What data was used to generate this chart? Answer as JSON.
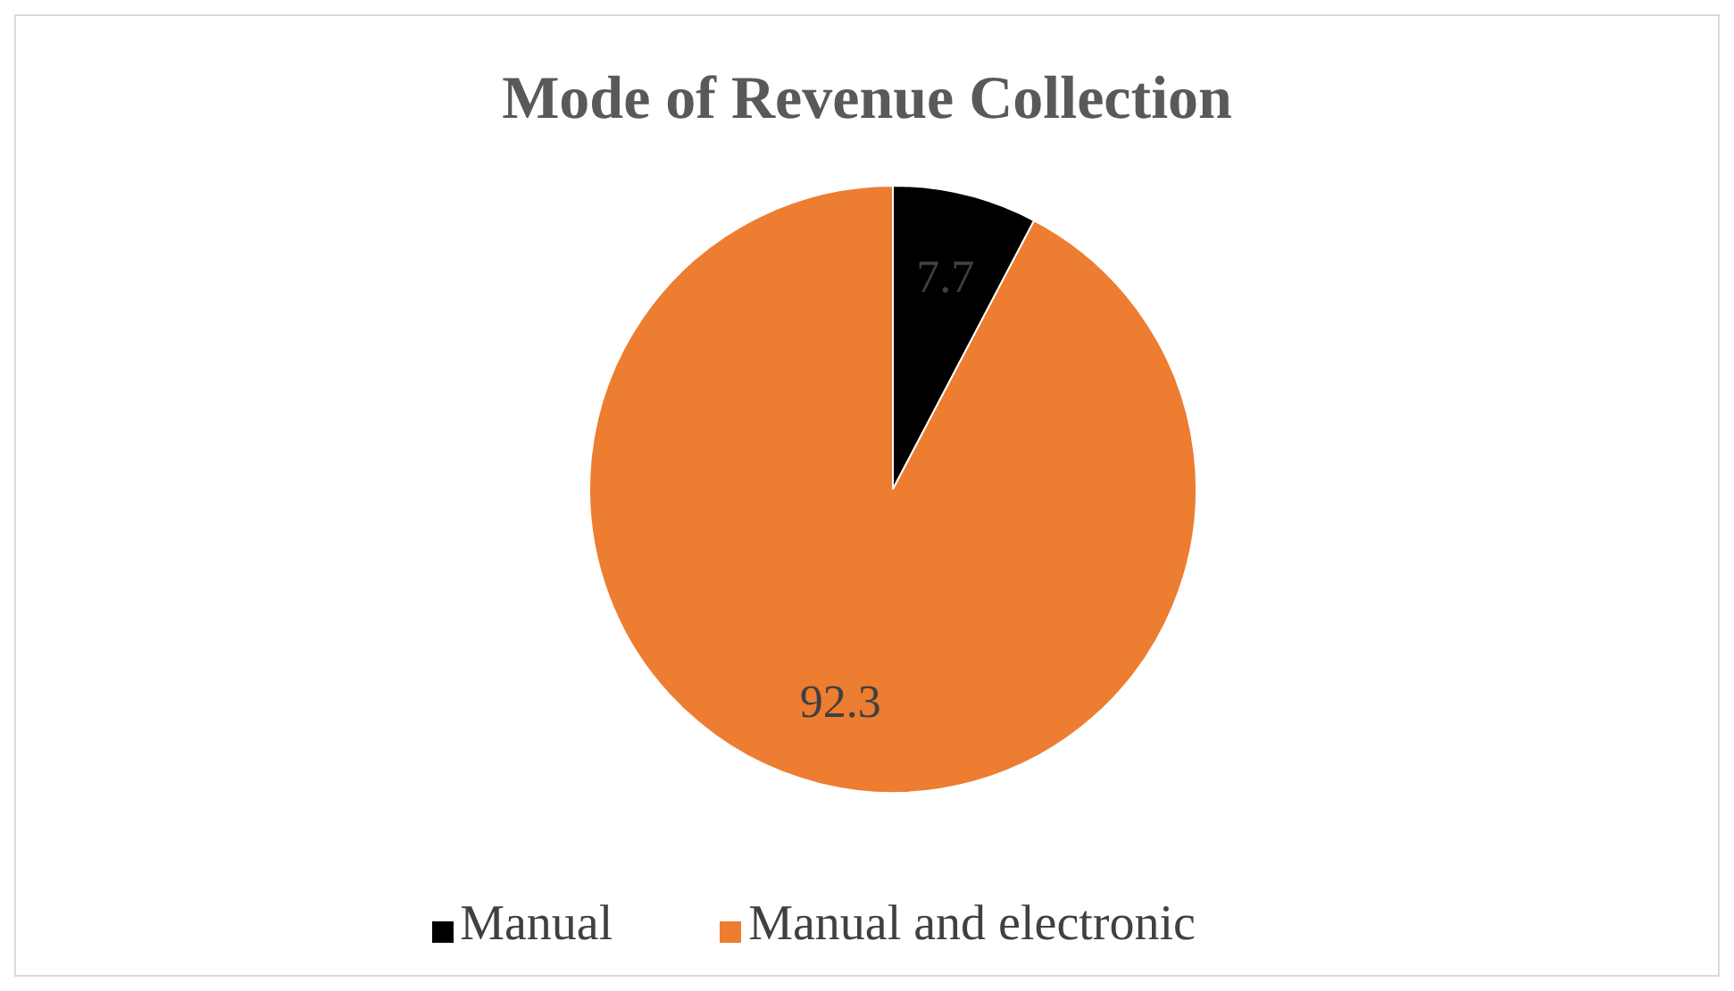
{
  "chart_data": {
    "type": "pie",
    "title": "Mode of Revenue Collection",
    "categories": [
      "Manual",
      "Manual and electronic"
    ],
    "values": [
      7.7,
      92.3
    ],
    "colors": [
      "#000000",
      "#ed7d31"
    ],
    "data_labels": true,
    "legend": "bottom"
  }
}
